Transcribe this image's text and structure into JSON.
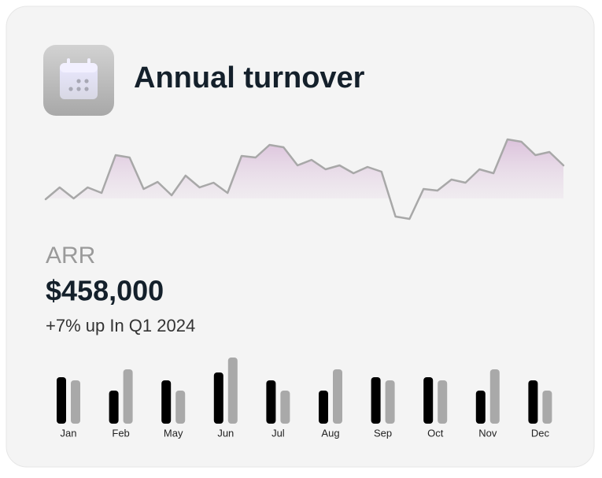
{
  "header": {
    "title": "Annual turnover"
  },
  "metric": {
    "label": "ARR",
    "value": "$458,000",
    "change": "+7% up In Q1 2024"
  },
  "chart_data": [
    {
      "type": "line",
      "color": "#a8a8a8",
      "fill": "#e6d3e6",
      "ylim": [
        0,
        120
      ],
      "values": [
        37,
        52,
        38,
        52,
        45,
        93,
        90,
        50,
        59,
        42,
        67,
        52,
        58,
        45,
        92,
        90,
        106,
        103,
        80,
        87,
        75,
        80,
        70,
        78,
        72,
        15,
        12,
        50,
        48,
        62,
        58,
        75,
        70,
        113,
        110,
        93,
        97,
        80
      ]
    },
    {
      "type": "bar",
      "ylim": [
        0,
        100
      ],
      "categories": [
        "Jan",
        "Feb",
        "May",
        "Jun",
        "Jul",
        "Aug",
        "Sep",
        "Oct",
        "Nov",
        "Dec"
      ],
      "series": [
        {
          "color": "#000000",
          "values": [
            59,
            42,
            55,
            65,
            55,
            42,
            59,
            59,
            42,
            55
          ]
        },
        {
          "color": "#a9a9a9",
          "values": [
            55,
            69,
            42,
            84,
            42,
            69,
            55,
            55,
            69,
            42
          ]
        }
      ]
    }
  ]
}
